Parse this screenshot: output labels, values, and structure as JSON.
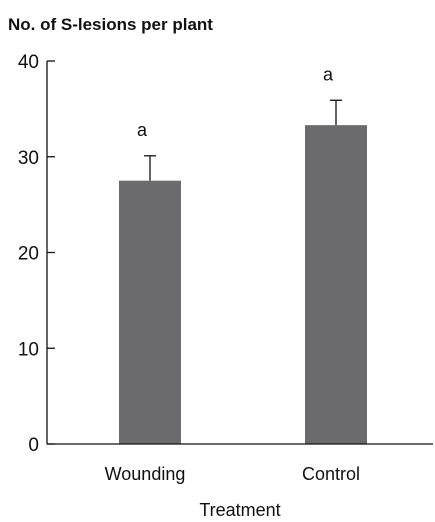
{
  "chart_data": {
    "type": "bar",
    "ylabel": "No. of S-lesions per plant",
    "xlabel": "Treatment",
    "categories": [
      "Wounding",
      "Control"
    ],
    "values": [
      27.5,
      33.3
    ],
    "errors": [
      2.6,
      2.6
    ],
    "annotations": [
      "a",
      "a"
    ],
    "ylim": [
      0,
      40
    ],
    "yticks": [
      0,
      10,
      20,
      30,
      40
    ],
    "ytick_labels": [
      "0",
      "10",
      "20",
      "30",
      "40"
    ],
    "grid": false,
    "bar_color": "#6b6b6e"
  }
}
